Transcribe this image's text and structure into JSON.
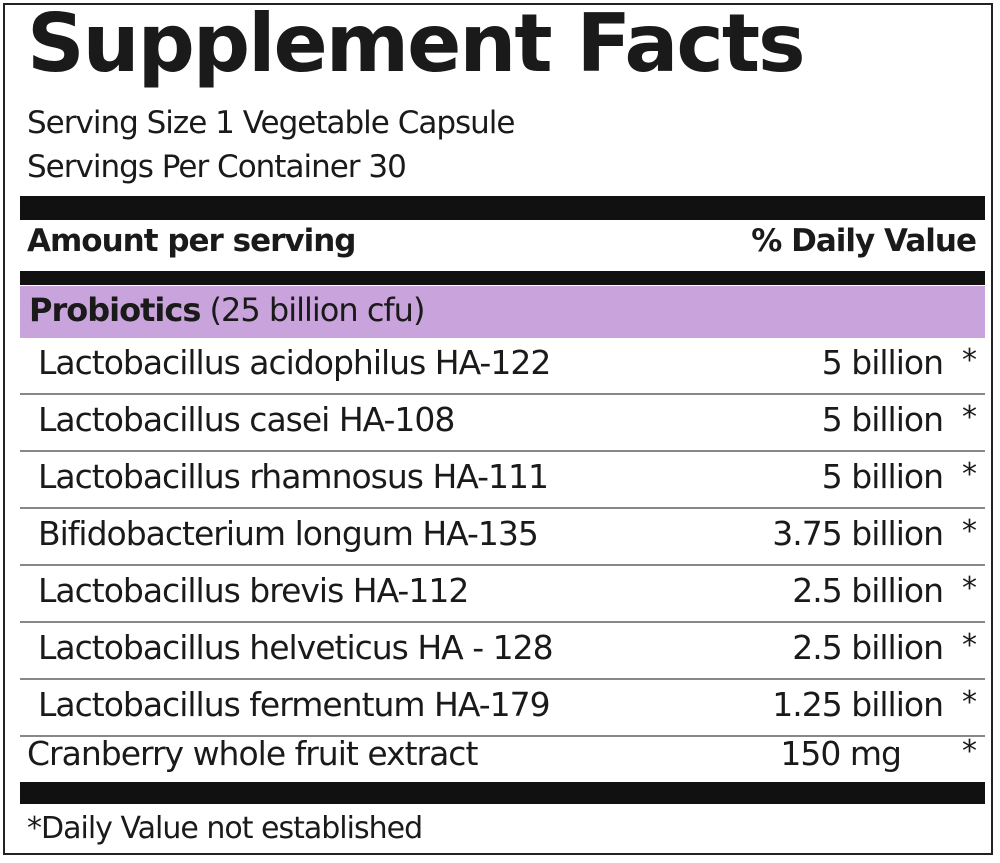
{
  "title": "Supplement Facts",
  "serving_size": "Serving Size 1 Vegetable Capsule",
  "servings_per_container": "Servings Per Container 30",
  "header": {
    "amount_label": "Amount per serving",
    "dv_label": "% Daily Value"
  },
  "category": {
    "name": "Probiotics",
    "detail": "(25 billion cfu)",
    "band_color": "#c9a3db"
  },
  "ingredients": [
    {
      "name": "Lactobacillus acidophilus HA-122",
      "amount": "5 billion",
      "dv": "*"
    },
    {
      "name": "Lactobacillus casei HA-108",
      "amount": "5 billion",
      "dv": "*"
    },
    {
      "name": "Lactobacillus rhamnosus HA-111",
      "amount": "5 billion",
      "dv": "*"
    },
    {
      "name": "Bifidobacterium longum HA-135",
      "amount": "3.75 billion",
      "dv": "*"
    },
    {
      "name": "Lactobacillus brevis HA-112",
      "amount": "2.5 billion",
      "dv": "*"
    },
    {
      "name": "Lactobacillus helveticus HA - 128",
      "amount": "2.5 billion",
      "dv": "*"
    },
    {
      "name": "Lactobacillus fermentum HA-179",
      "amount": "1.25 billion",
      "dv": "*"
    }
  ],
  "other": {
    "name": "Cranberry whole fruit extract",
    "amount": "150 mg",
    "dv": "*"
  },
  "footnote": "*Daily Value not established"
}
